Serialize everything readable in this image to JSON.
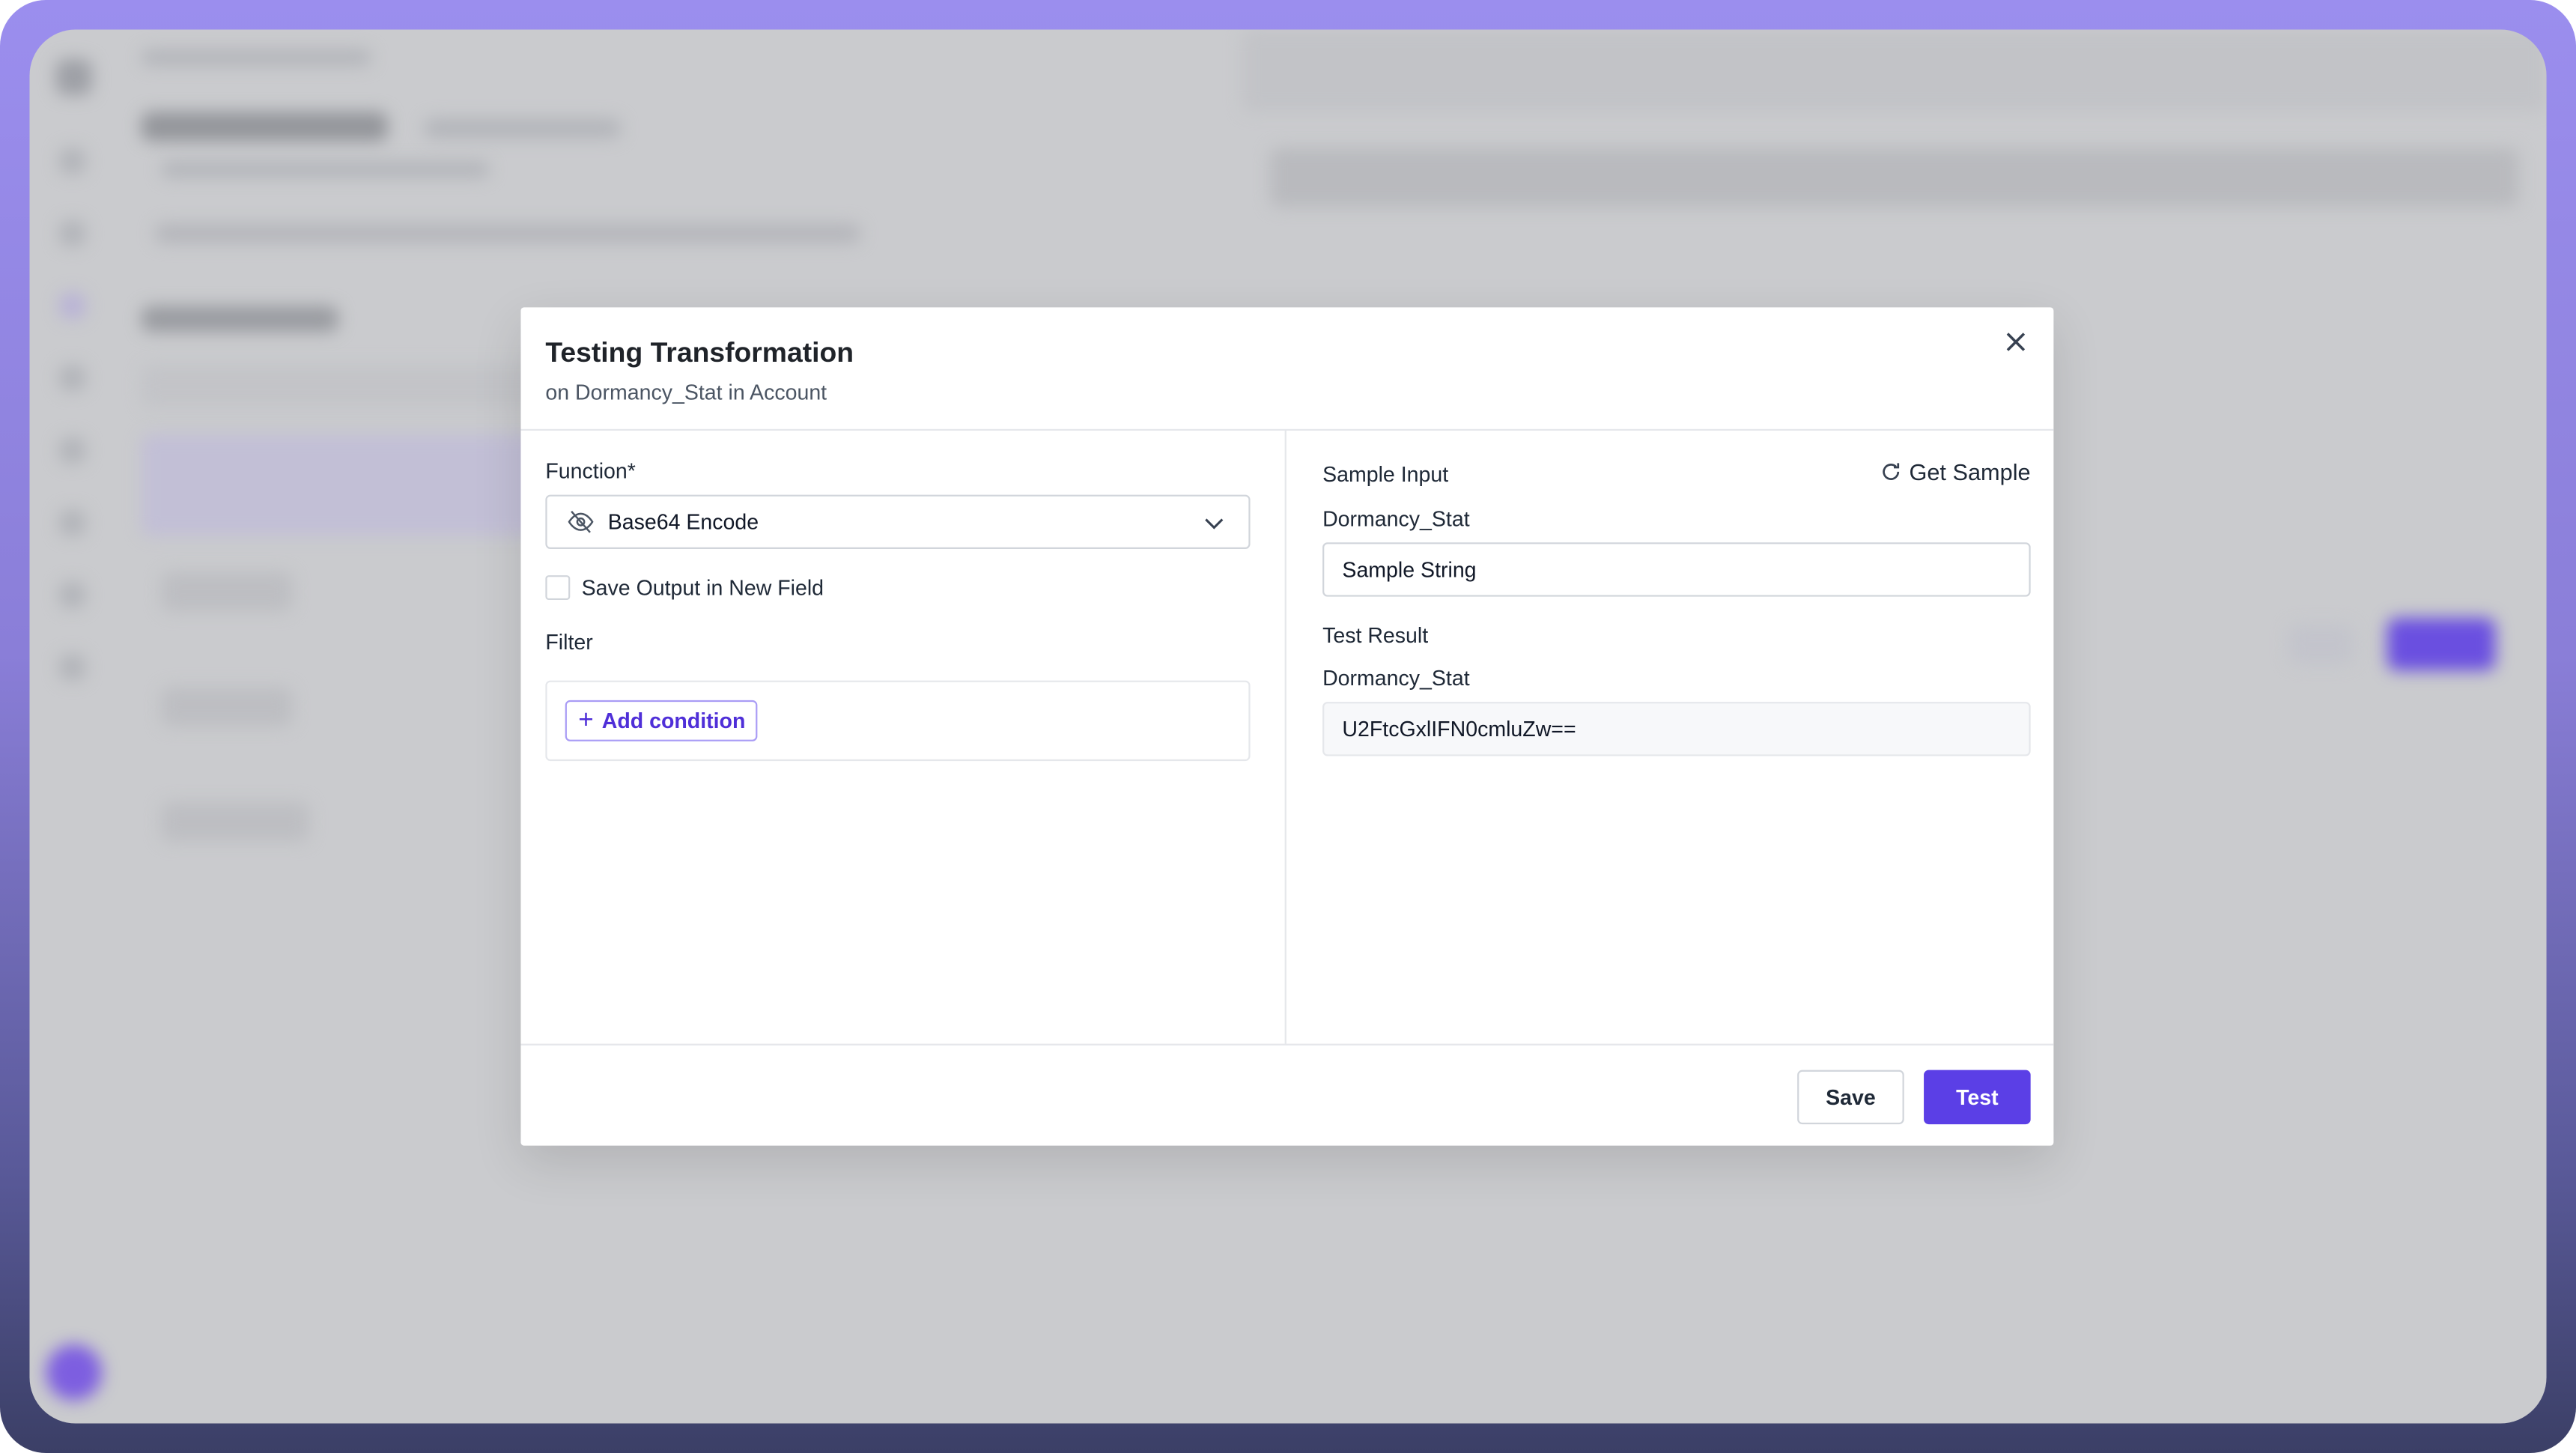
{
  "modal": {
    "title": "Testing Transformation",
    "subtitle": "on Dormancy_Stat in Account",
    "close_icon": "close-icon",
    "function_label": "Function*",
    "function_value": "Base64 Encode",
    "function_icon": "eye-off-icon",
    "save_output_label": "Save Output in New Field",
    "save_output_checked": false,
    "filter_label": "Filter",
    "add_condition_label": "Add condition",
    "sample_input_label": "Sample Input",
    "get_sample_label": "Get Sample",
    "sample_field_label": "Dormancy_Stat",
    "sample_value": "Sample String",
    "test_result_label": "Test Result",
    "result_field_label": "Dormancy_Stat",
    "result_value": "U2FtcGxlIFN0cmluZw==",
    "save_label": "Save",
    "test_label": "Test"
  },
  "colors": {
    "accent": "#5b3fe6",
    "frame": "#9b8eee",
    "backdrop": "#cacbce"
  }
}
